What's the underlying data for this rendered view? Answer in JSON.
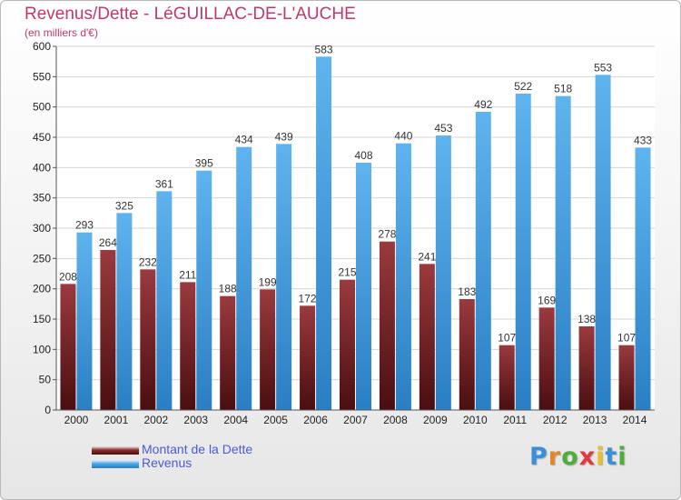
{
  "header": {
    "title": "Revenus/Dette - LéGUILLAC-DE-L'AUCHE",
    "subtitle": "(en milliers d'€)"
  },
  "legend": {
    "placement": "bottom-left",
    "items": [
      {
        "label": "Montant de la Dette",
        "color": "#7a1e22"
      },
      {
        "label": "Revenus",
        "color": "#3e9be0"
      }
    ]
  },
  "logo": {
    "text": "Proxiti"
  },
  "chart_data": {
    "type": "bar",
    "title": "Revenus/Dette - LéGUILLAC-DE-L'AUCHE",
    "subtitle": "(en milliers d'€)",
    "xlabel": "",
    "ylabel": "",
    "ylim": [
      0,
      600
    ],
    "yticks": [
      0,
      50,
      100,
      150,
      200,
      250,
      300,
      350,
      400,
      450,
      500,
      550,
      600
    ],
    "grid": true,
    "legend_position": "bottom-left",
    "categories": [
      "2000",
      "2001",
      "2002",
      "2003",
      "2004",
      "2005",
      "2006",
      "2007",
      "2008",
      "2009",
      "2010",
      "2011",
      "2012",
      "2013",
      "2014"
    ],
    "series": [
      {
        "name": "Montant de la Dette",
        "color": "#7a1e22",
        "values": [
          208,
          264,
          232,
          211,
          188,
          199,
          172,
          215,
          278,
          241,
          183,
          107,
          169,
          138,
          107
        ]
      },
      {
        "name": "Revenus",
        "color": "#3e9be0",
        "values": [
          293,
          325,
          361,
          395,
          434,
          439,
          583,
          408,
          440,
          453,
          492,
          522,
          518,
          553,
          433
        ]
      }
    ]
  }
}
